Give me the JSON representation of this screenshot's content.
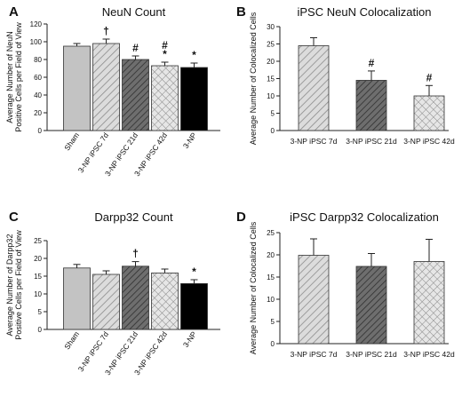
{
  "colors": {
    "sham": "#c3c3c3",
    "hatch_light": "#c8c8c8",
    "hatch_dark": "#6e6e6e",
    "crosshatch": "#d7d7d7",
    "black": "#000000",
    "stroke": "#333333"
  },
  "chart_data": [
    {
      "panel_label": "A",
      "type": "bar",
      "title": "NeuN Count",
      "ylabel": "Average Number of NeuN Positive Cells per Field of View",
      "ylim": [
        0,
        120
      ],
      "yticks": [
        "0",
        "20",
        "40",
        "60",
        "80",
        "100",
        "120"
      ],
      "categories": [
        "Sham",
        "3-NP iPSC 7d",
        "3-NP iPSC 21d",
        "3-NP iPSC 42d",
        "3-NP"
      ],
      "tick_style": "rotated",
      "values": [
        95,
        98,
        80,
        73,
        71
      ],
      "errors": [
        3,
        5,
        4,
        4,
        5
      ],
      "fills": [
        "sham",
        "hatch_light",
        "hatch_dark",
        "crosshatch",
        "black"
      ],
      "annotations": [
        "",
        "†",
        "#",
        "#\n*",
        "*"
      ]
    },
    {
      "panel_label": "B",
      "type": "bar",
      "title": "iPSC NeuN Colocalization",
      "ylabel": "Average Number of Colocalized Cells",
      "ylim": [
        0,
        30
      ],
      "yticks": [
        "0",
        "5",
        "10",
        "15",
        "20",
        "25",
        "30"
      ],
      "categories": [
        "3-NP iPSC 7d",
        "3-NP iPSC 21d",
        "3-NP iPSC 42d"
      ],
      "tick_style": "horizontal",
      "values": [
        24.5,
        14.5,
        10
      ],
      "errors": [
        2.3,
        2.7,
        3
      ],
      "fills": [
        "hatch_light",
        "hatch_dark",
        "crosshatch"
      ],
      "annotations": [
        "",
        "#",
        "#"
      ]
    },
    {
      "panel_label": "C",
      "type": "bar",
      "title": "Darpp32 Count",
      "ylabel": "Average Number of Darpp32 Positive Cells per Field of View",
      "ylim": [
        0,
        25
      ],
      "yticks": [
        "0",
        "5",
        "10",
        "15",
        "20",
        "25"
      ],
      "categories": [
        "Sham",
        "3-NP iPSC 7d",
        "3-NP iPSC 21d",
        "3-NP iPSC 42d",
        "3-NP"
      ],
      "tick_style": "rotated",
      "values": [
        17.3,
        15.5,
        17.8,
        15.9,
        12.9
      ],
      "errors": [
        1.0,
        1.0,
        1.3,
        1.1,
        1.1
      ],
      "fills": [
        "sham",
        "hatch_light",
        "hatch_dark",
        "crosshatch",
        "black"
      ],
      "annotations": [
        "",
        "",
        "†",
        "",
        "*"
      ]
    },
    {
      "panel_label": "D",
      "type": "bar",
      "title": "iPSC Darpp32 Colocalization",
      "ylabel": "Average Number of Colocalized Cells",
      "ylim": [
        0,
        25
      ],
      "yticks": [
        "0",
        "5",
        "10",
        "15",
        "20",
        "25"
      ],
      "categories": [
        "3-NP iPSC 7d",
        "3-NP iPSC 21d",
        "3-NP iPSC 42d"
      ],
      "tick_style": "horizontal",
      "values": [
        19.9,
        17.4,
        18.5
      ],
      "errors": [
        3.7,
        2.9,
        5.0
      ],
      "fills": [
        "hatch_light",
        "hatch_dark",
        "crosshatch"
      ],
      "annotations": [
        "",
        "",
        ""
      ]
    }
  ]
}
